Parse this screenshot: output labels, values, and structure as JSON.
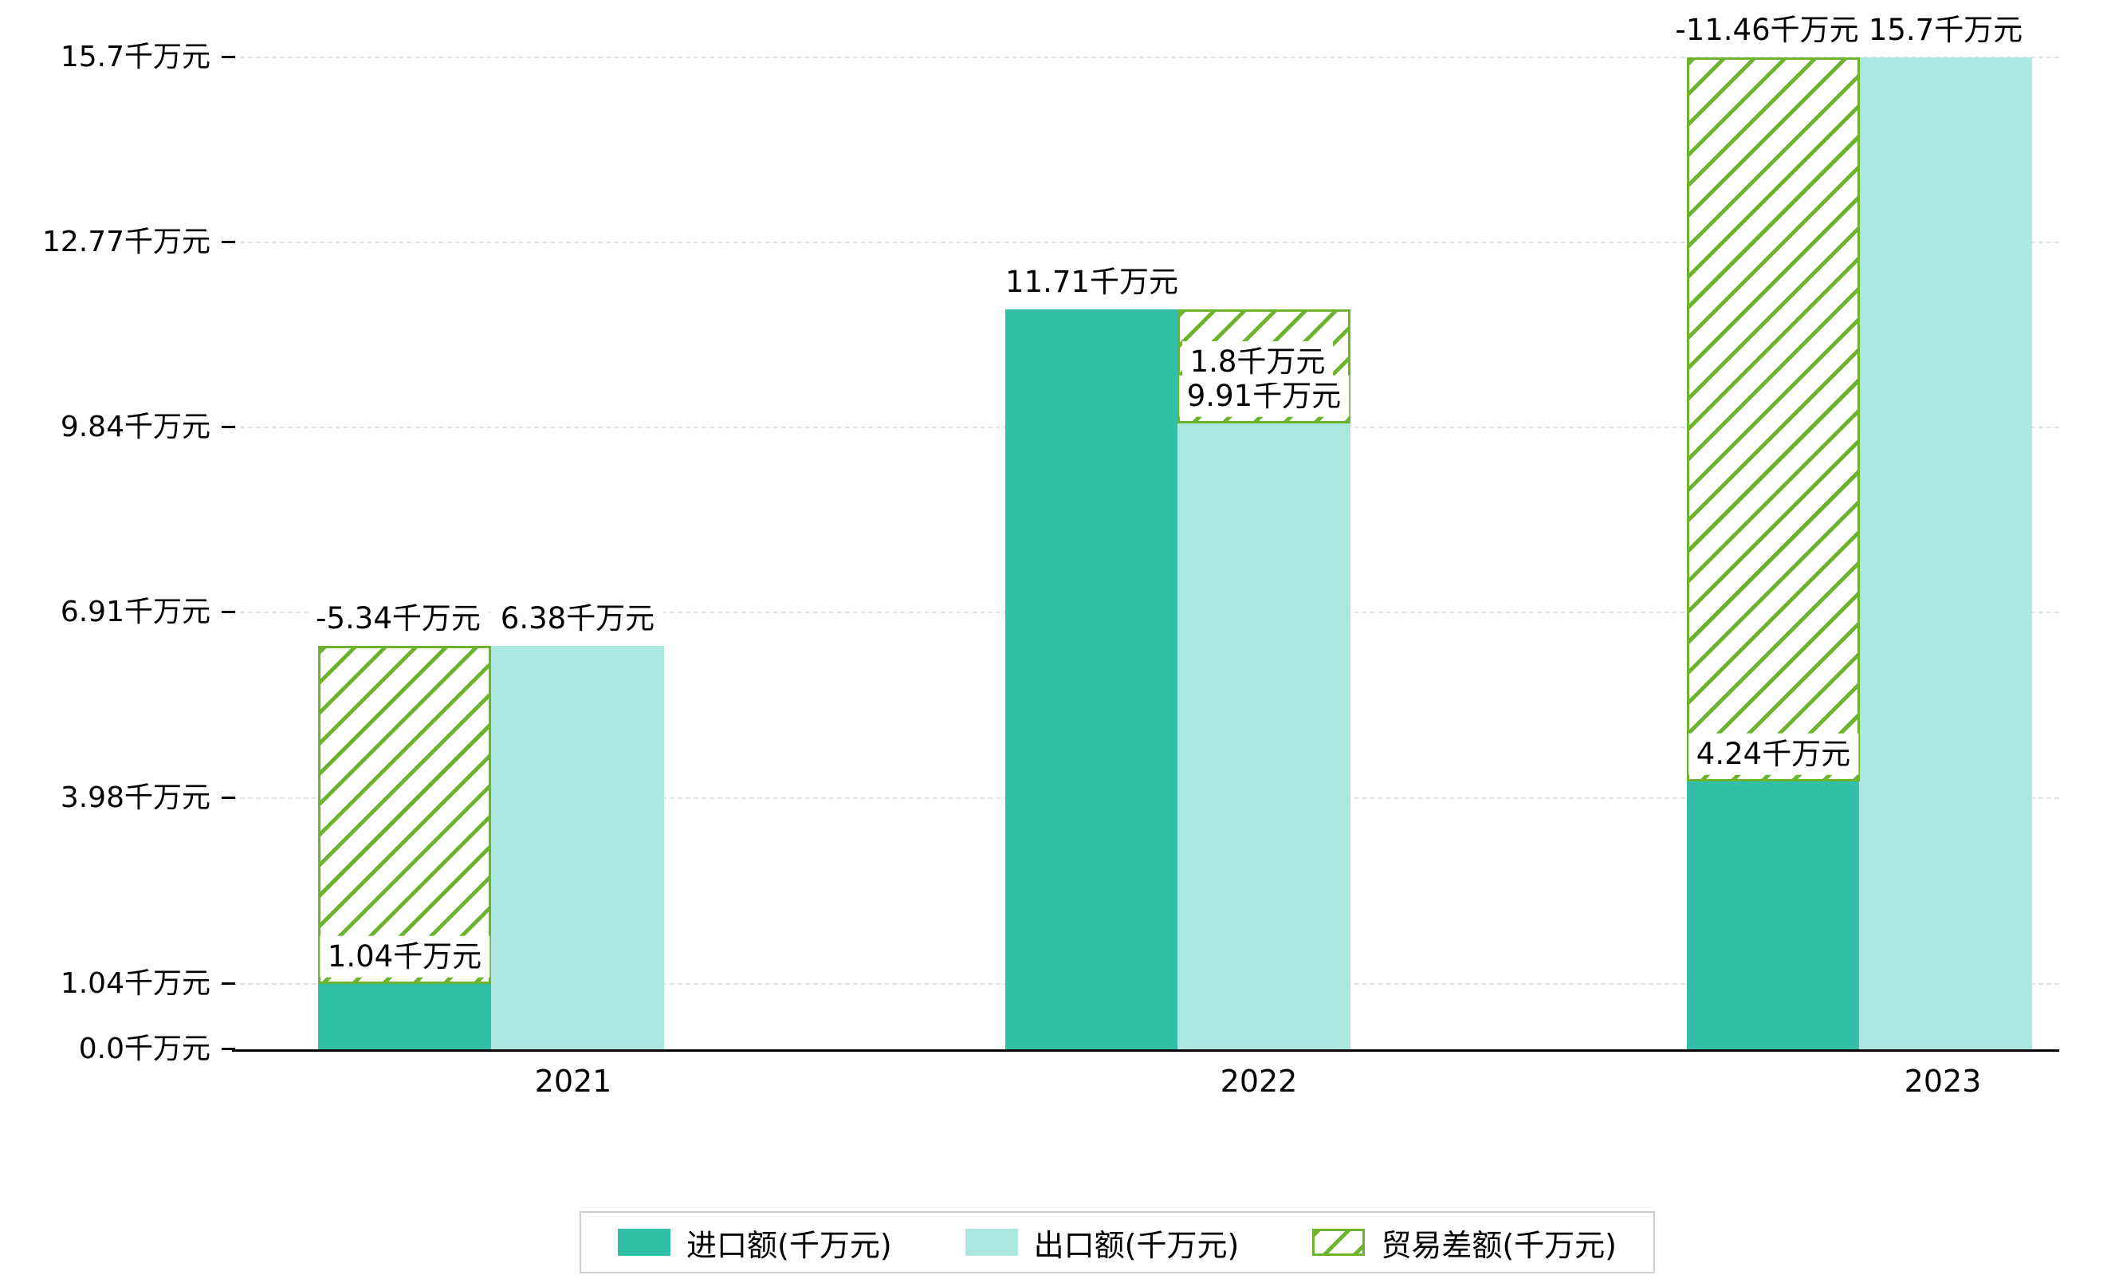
{
  "chart_data": {
    "type": "bar",
    "title": "",
    "categories": [
      "2021",
      "2022",
      "2023"
    ],
    "series": [
      {
        "name": "进口额(千万元)",
        "role": "import",
        "values": [
          1.04,
          11.71,
          4.24
        ],
        "labels": [
          "1.04千万元",
          "11.71千万元",
          "4.24千万元"
        ],
        "color": "#31bfa8",
        "style": "solid"
      },
      {
        "name": "出口额(千万元)",
        "role": "export",
        "values": [
          6.38,
          9.91,
          15.7
        ],
        "labels": [
          "6.38千万元",
          "9.91千万元",
          "15.7千万元"
        ],
        "color": "#abe7df",
        "style": "solid"
      },
      {
        "name": "贸易差额(千万元)",
        "role": "trade-balance",
        "values": [
          -5.34,
          1.8,
          -11.46
        ],
        "labels": [
          "-5.34千万元",
          "1.8千万元",
          "-11.46千万元"
        ],
        "color": "#6db42e",
        "style": "hatched"
      }
    ],
    "y_axis": {
      "unit": "千万元",
      "ylim": [
        0,
        15.7
      ],
      "ticks": [
        {
          "label": "0.0千万元",
          "value": 0.0
        },
        {
          "label": "1.04千万元",
          "value": 1.04
        },
        {
          "label": "3.98千万元",
          "value": 3.98
        },
        {
          "label": "6.91千万元",
          "value": 6.91
        },
        {
          "label": "9.84千万元",
          "value": 9.84
        },
        {
          "label": "12.77千万元",
          "value": 12.77
        },
        {
          "label": "15.7千万元",
          "value": 15.7
        }
      ]
    },
    "legend": {
      "position": "bottom",
      "entries": [
        "进口额(千万元)",
        "出口额(千万元)",
        "贸易差额(千万元)"
      ]
    },
    "grid": "dashed horizontal gridlines"
  },
  "colors": {
    "import": "#31bfa8",
    "export": "#abe7df",
    "trade": "#6db42e",
    "grid": "#e4e4e4",
    "axis": "#000000",
    "label_bg": "#ffffff",
    "legend_border": "#cfcfcf"
  }
}
